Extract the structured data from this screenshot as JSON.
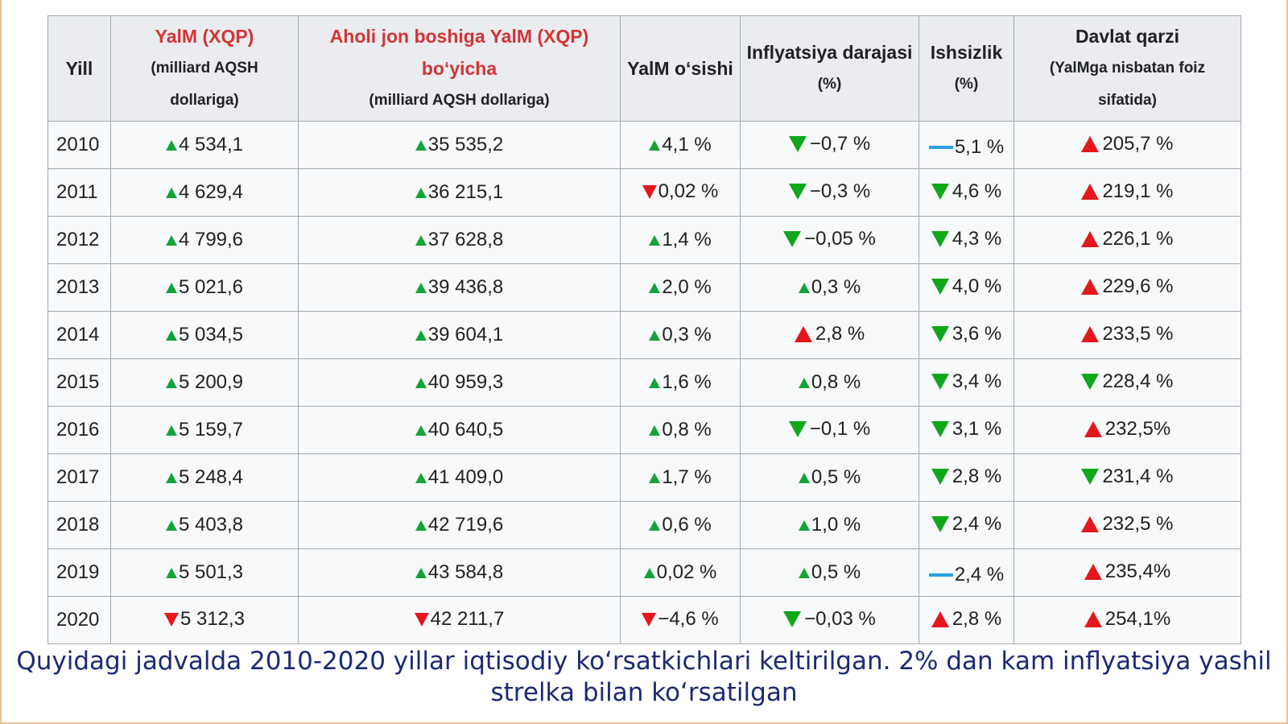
{
  "table": {
    "headers": [
      {
        "main": "Yill",
        "sub": ""
      },
      {
        "main": "YalM (XQP)",
        "sub": "(milliard AQSH dollariga)"
      },
      {
        "main": "Aholi jon boshiga YalM (XQP) bo‘yicha",
        "sub": "(milliard AQSH dollariga)"
      },
      {
        "main": "YalM o‘sishi",
        "sub": ""
      },
      {
        "main": "Inflyatsiya darajasi",
        "sub": "(%)"
      },
      {
        "main": "Ishsizlik",
        "sub": "(%)"
      },
      {
        "main": "Davlat qarzi",
        "sub": "(YalMga nisbatan foiz sifatida)"
      }
    ],
    "rows": [
      [
        "2010",
        {
          "t": "4 534,1",
          "i": "up-s"
        },
        {
          "t": "35 535,2",
          "i": "up-s"
        },
        {
          "t": "4,1 %",
          "i": "up-s"
        },
        {
          "t": "−0,7 %",
          "i": "dn-g"
        },
        {
          "t": "5,1 %",
          "i": "flat"
        },
        {
          "t": "205,7 %",
          "i": "up-r"
        }
      ],
      [
        "2011",
        {
          "t": "4 629,4",
          "i": "up-s"
        },
        {
          "t": "36 215,1",
          "i": "up-s"
        },
        {
          "t": "0,02 %",
          "i": "dn-r"
        },
        {
          "t": "−0,3 %",
          "i": "dn-g"
        },
        {
          "t": "4,6 %",
          "i": "dn-g"
        },
        {
          "t": "219,1 %",
          "i": "up-r"
        }
      ],
      [
        "2012",
        {
          "t": "4 799,6",
          "i": "up-s"
        },
        {
          "t": "37 628,8",
          "i": "up-s"
        },
        {
          "t": "1,4 %",
          "i": "up-s"
        },
        {
          "t": "−0,05 %",
          "i": "dn-g"
        },
        {
          "t": "4,3 %",
          "i": "dn-g"
        },
        {
          "t": "226,1 %",
          "i": "up-r"
        }
      ],
      [
        "2013",
        {
          "t": "5 021,6",
          "i": "up-s"
        },
        {
          "t": "39 436,8",
          "i": "up-s"
        },
        {
          "t": "2,0 %",
          "i": "up-s"
        },
        {
          "t": "0,3 %",
          "i": "up-s"
        },
        {
          "t": "4,0 %",
          "i": "dn-g"
        },
        {
          "t": "229,6 %",
          "i": "up-r"
        }
      ],
      [
        "2014",
        {
          "t": "5 034,5",
          "i": "up-s"
        },
        {
          "t": "39 604,1",
          "i": "up-s"
        },
        {
          "t": "0,3 %",
          "i": "up-s"
        },
        {
          "t": "2,8 %",
          "i": "up-r"
        },
        {
          "t": "3,6 %",
          "i": "dn-g"
        },
        {
          "t": "233,5 %",
          "i": "up-r"
        }
      ],
      [
        "2015",
        {
          "t": "5 200,9",
          "i": "up-s"
        },
        {
          "t": "40 959,3",
          "i": "up-s"
        },
        {
          "t": "1,6 %",
          "i": "up-s"
        },
        {
          "t": "0,8 %",
          "i": "up-s"
        },
        {
          "t": "3,4 %",
          "i": "dn-g"
        },
        {
          "t": "228,4 %",
          "i": "dn-g"
        }
      ],
      [
        "2016",
        {
          "t": "5 159,7",
          "i": "up-s"
        },
        {
          "t": "40 640,5",
          "i": "up-s"
        },
        {
          "t": "0,8 %",
          "i": "up-s"
        },
        {
          "t": "−0,1 %",
          "i": "dn-g"
        },
        {
          "t": "3,1 %",
          "i": "dn-g"
        },
        {
          "t": "232,5%",
          "i": "up-r"
        }
      ],
      [
        "2017",
        {
          "t": "5 248,4",
          "i": "up-s"
        },
        {
          "t": "41 409,0",
          "i": "up-s"
        },
        {
          "t": "1,7 %",
          "i": "up-s"
        },
        {
          "t": "0,5 %",
          "i": "up-s"
        },
        {
          "t": "2,8 %",
          "i": "dn-g"
        },
        {
          "t": "231,4 %",
          "i": "dn-g"
        }
      ],
      [
        "2018",
        {
          "t": "5 403,8",
          "i": "up-s"
        },
        {
          "t": "42 719,6",
          "i": "up-s"
        },
        {
          "t": "0,6 %",
          "i": "up-s"
        },
        {
          "t": "1,0 %",
          "i": "up-s"
        },
        {
          "t": "2,4 %",
          "i": "dn-g"
        },
        {
          "t": "232,5 %",
          "i": "up-r"
        }
      ],
      [
        "2019",
        {
          "t": "5 501,3",
          "i": "up-s"
        },
        {
          "t": "43 584,8",
          "i": "up-s"
        },
        {
          "t": "0,02 %",
          "i": "up-s"
        },
        {
          "t": "0,5 %",
          "i": "up-s"
        },
        {
          "t": "2,4 %",
          "i": "flat"
        },
        {
          "t": "235,4%",
          "i": "up-r"
        }
      ],
      [
        "2020",
        {
          "t": "5 312,3",
          "i": "dn-r"
        },
        {
          "t": "42 211,7",
          "i": "dn-r"
        },
        {
          "t": "−4,6 %",
          "i": "dn-r"
        },
        {
          "t": "−0,03 %",
          "i": "dn-g"
        },
        {
          "t": "2,8 %",
          "i": "up-r"
        },
        {
          "t": "254,1%",
          "i": "up-r"
        }
      ]
    ]
  },
  "indicator_icons": {
    "up-s": "small-green-up-arrow-icon",
    "up-g": "green-up-arrow-icon",
    "dn-g": "green-down-arrow-icon",
    "up-r": "red-up-arrow-icon",
    "dn-r": "red-down-arrow-icon",
    "flat": "blue-flat-dash-icon"
  },
  "colors": {
    "header_red": "#d33434",
    "green": "#0ea81a",
    "red": "#e5171c",
    "blue": "#28a2e8",
    "caption": "#1c2a72"
  },
  "caption": "Quyidagi jadvalda 2010-2020 yillar iqtisodiy ko‘rsatkichlari keltirilgan. 2% dan kam inflyatsiya yashil strelka bilan ko‘rsatilgan"
}
